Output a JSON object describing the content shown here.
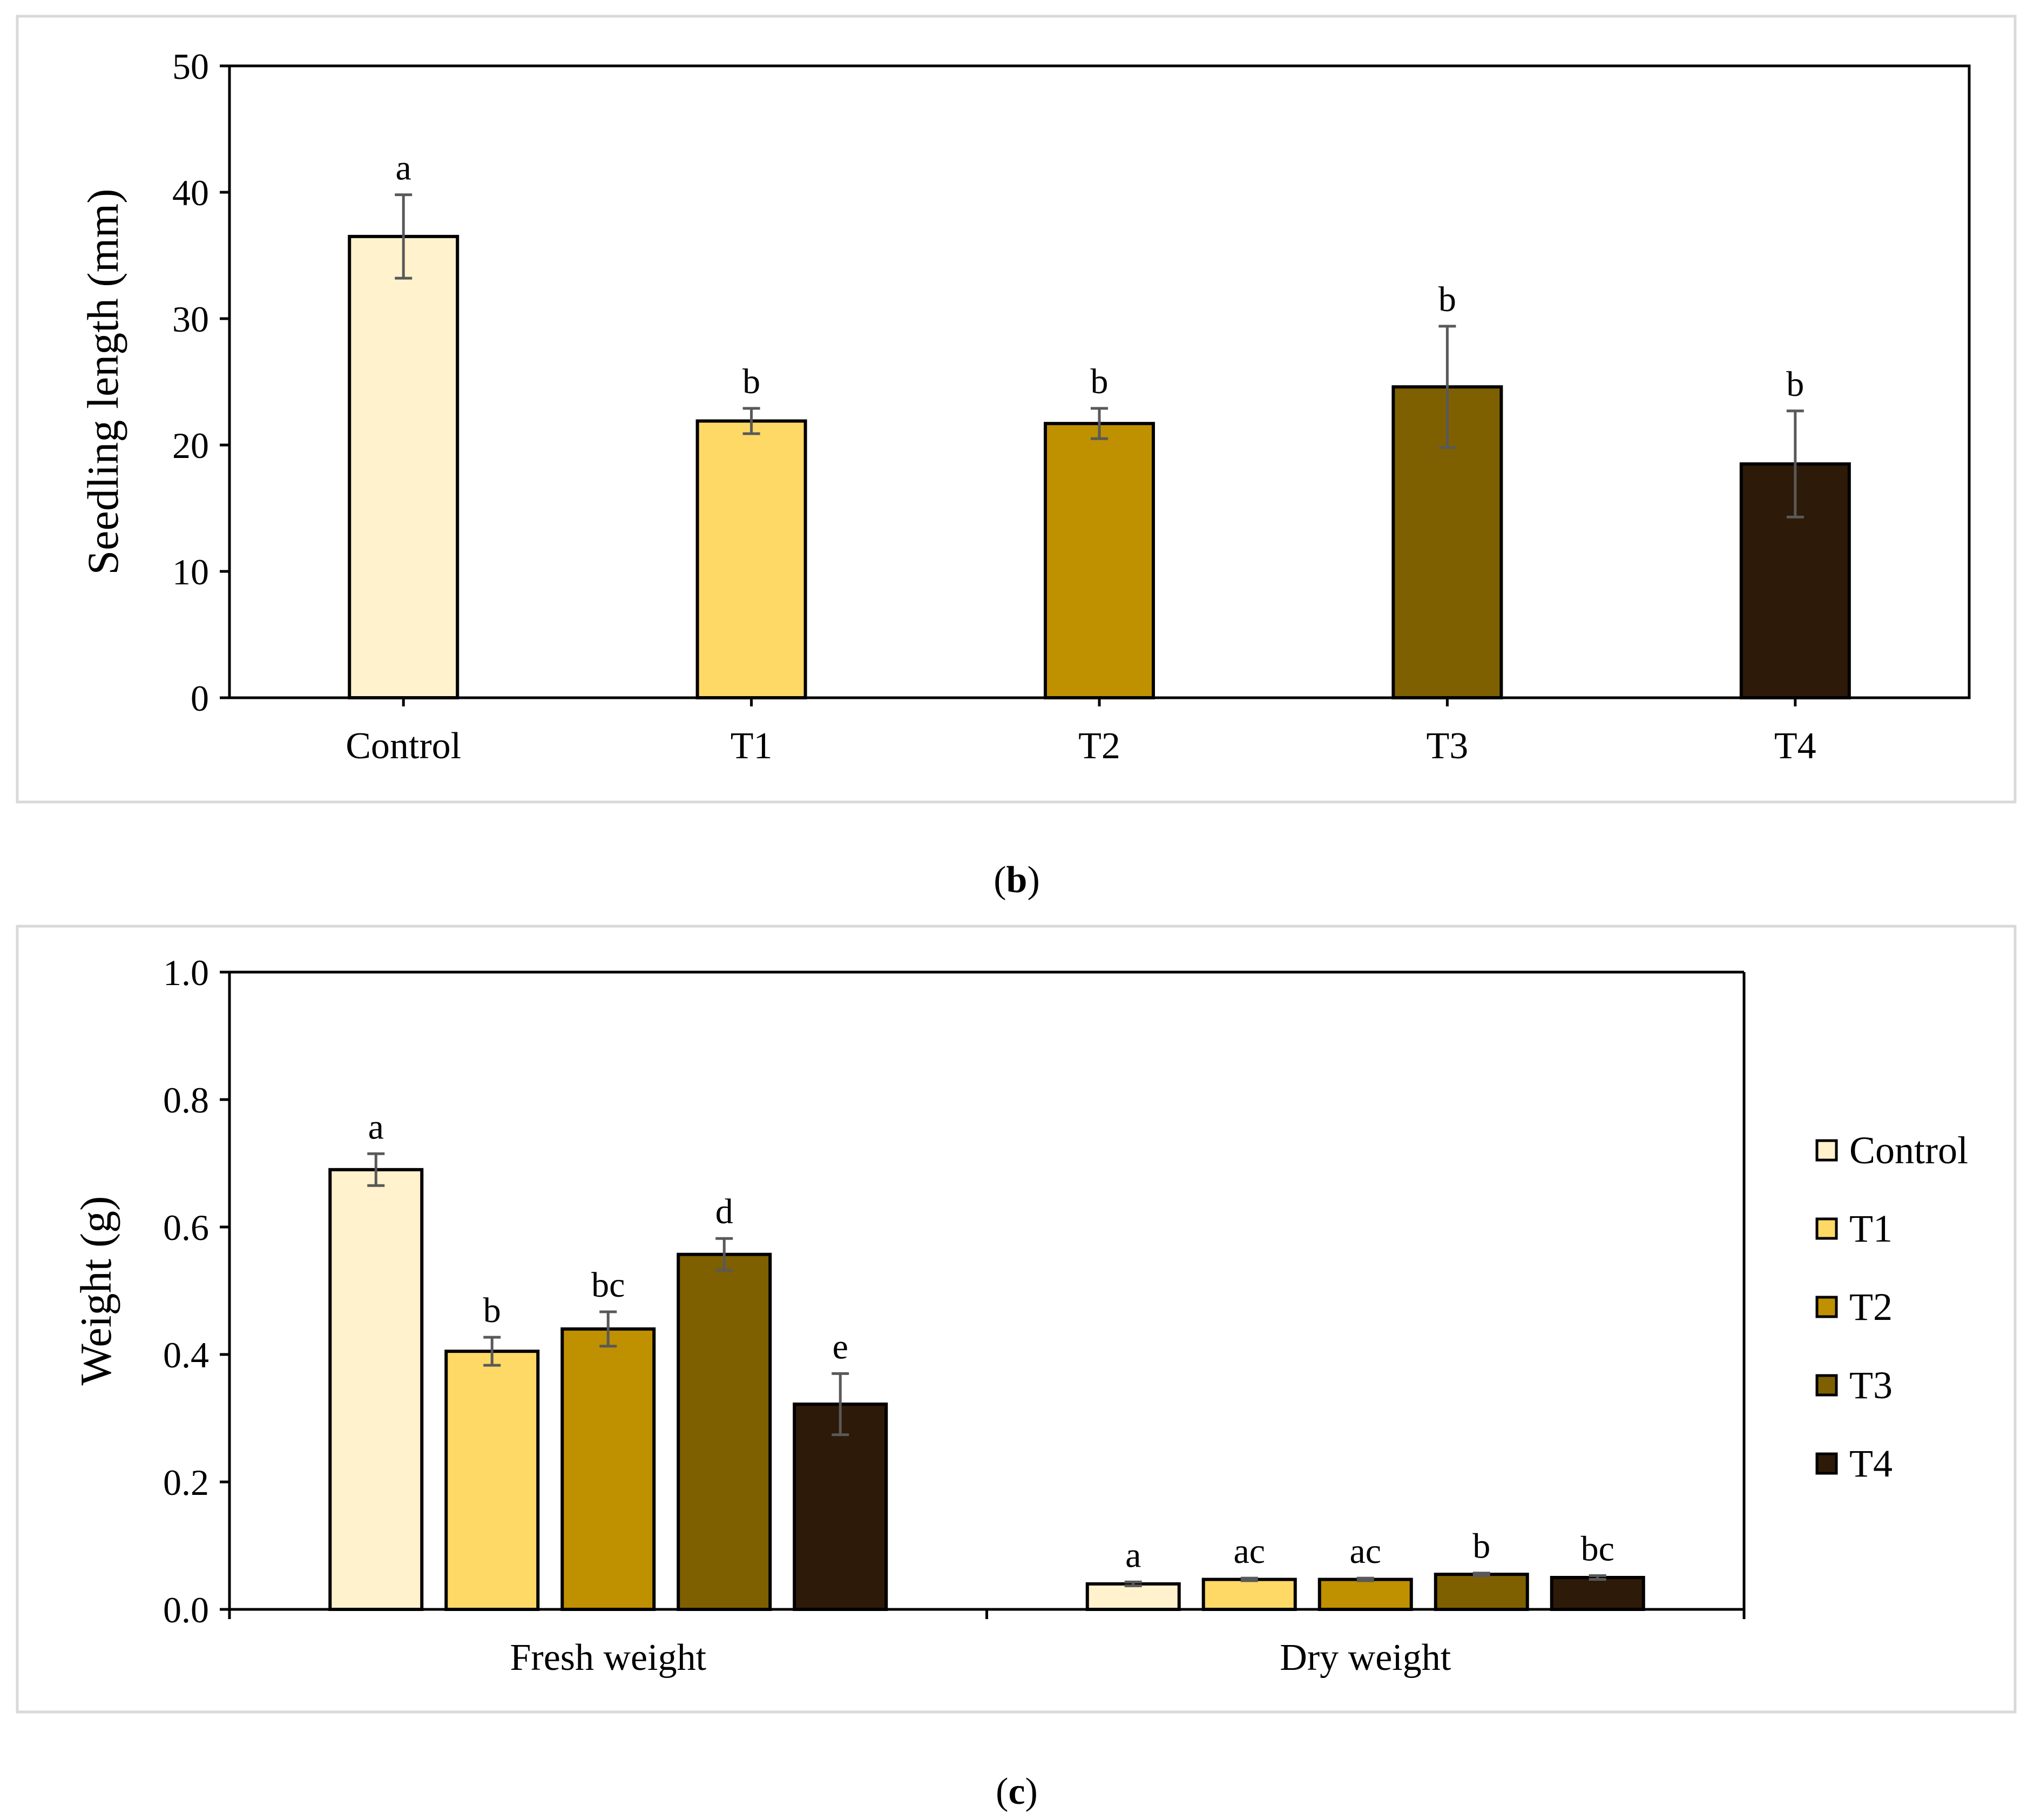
{
  "colors": {
    "Control": "#FFF2CC",
    "T1": "#FFD966",
    "T2": "#BF9000",
    "T3": "#7F6000",
    "T4": "#2E1A08",
    "error_bar": "#595959",
    "frame": "#D9D9D9"
  },
  "chart_data": [
    {
      "type": "bar",
      "panel_label": "b",
      "ylabel": "Seedling length (mm)",
      "xlabel": "",
      "ylim": [
        0,
        50
      ],
      "yticks": [
        "0",
        "10",
        "20",
        "30",
        "40",
        "50"
      ],
      "categories": [
        "Control",
        "T1",
        "T2",
        "T3",
        "T4"
      ],
      "values": [
        36.5,
        21.9,
        21.7,
        24.6,
        18.5
      ],
      "errors": [
        3.3,
        1.0,
        1.2,
        4.8,
        4.2
      ],
      "letters": [
        "a",
        "b",
        "b",
        "b",
        "b"
      ]
    },
    {
      "type": "bar",
      "panel_label": "c",
      "ylabel": "Weight (g)",
      "xlabel": "",
      "ylim": [
        0,
        1.0
      ],
      "yticks": [
        "0.0",
        "0.2",
        "0.4",
        "0.6",
        "0.8",
        "1.0"
      ],
      "categories": [
        "Fresh weight",
        "Dry weight"
      ],
      "legend": [
        "Control",
        "T1",
        "T2",
        "T3",
        "T4"
      ],
      "legend_position": "right",
      "series": [
        {
          "name": "Control",
          "values": [
            0.69,
            0.04
          ],
          "errors": [
            0.025,
            0.003
          ],
          "letters": [
            "a",
            "a"
          ]
        },
        {
          "name": "T1",
          "values": [
            0.405,
            0.047
          ],
          "errors": [
            0.022,
            0.002
          ],
          "letters": [
            "b",
            "ac"
          ]
        },
        {
          "name": "T2",
          "values": [
            0.44,
            0.047
          ],
          "errors": [
            0.027,
            0.002
          ],
          "letters": [
            "bc",
            "ac"
          ]
        },
        {
          "name": "T3",
          "values": [
            0.557,
            0.055
          ],
          "errors": [
            0.025,
            0.002
          ],
          "letters": [
            "d",
            "b"
          ]
        },
        {
          "name": "T4",
          "values": [
            0.322,
            0.05
          ],
          "errors": [
            0.048,
            0.003
          ],
          "letters": [
            "e",
            "bc"
          ]
        }
      ]
    }
  ]
}
